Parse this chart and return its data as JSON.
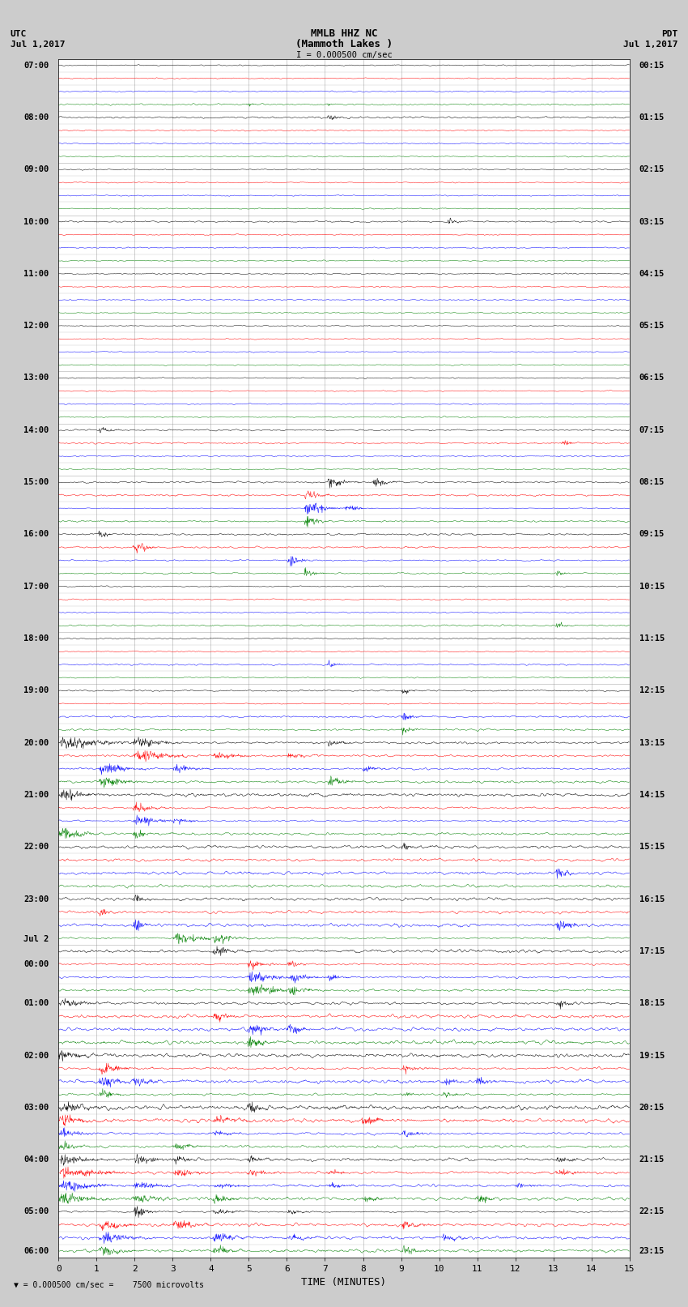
{
  "title_line1": "MMLB HHZ NC",
  "title_line2": "(Mammoth Lakes )",
  "title_line3": "I = 0.000500 cm/sec",
  "left_label_line1": "UTC",
  "left_label_line2": "Jul 1,2017",
  "right_label_line1": "PDT",
  "right_label_line2": "Jul 1,2017",
  "xlabel": "TIME (MINUTES)",
  "bottom_note": "= 0.000500 cm/sec =    7500 microvolts",
  "xlim": [
    0,
    15
  ],
  "xticks": [
    0,
    1,
    2,
    3,
    4,
    5,
    6,
    7,
    8,
    9,
    10,
    11,
    12,
    13,
    14,
    15
  ],
  "colors": [
    "black",
    "red",
    "blue",
    "green"
  ],
  "n_groups": 23,
  "bg_color": "#cccccc",
  "trace_bg": "#ffffff",
  "seed": 42,
  "utc_labels": [
    [
      0,
      "07:00"
    ],
    [
      4,
      "08:00"
    ],
    [
      8,
      "09:00"
    ],
    [
      12,
      "10:00"
    ],
    [
      16,
      "11:00"
    ],
    [
      20,
      "12:00"
    ],
    [
      24,
      "13:00"
    ],
    [
      28,
      "14:00"
    ],
    [
      32,
      "15:00"
    ],
    [
      36,
      "16:00"
    ],
    [
      40,
      "17:00"
    ],
    [
      44,
      "18:00"
    ],
    [
      48,
      "19:00"
    ],
    [
      52,
      "20:00"
    ],
    [
      56,
      "21:00"
    ],
    [
      60,
      "22:00"
    ],
    [
      64,
      "23:00"
    ],
    [
      68,
      "Jul 2"
    ],
    [
      69,
      "00:00"
    ],
    [
      72,
      "01:00"
    ],
    [
      76,
      "02:00"
    ],
    [
      80,
      "03:00"
    ],
    [
      84,
      "04:00"
    ],
    [
      88,
      "05:00"
    ],
    [
      91,
      "06:00"
    ]
  ],
  "pdt_labels": [
    [
      0,
      "00:15"
    ],
    [
      4,
      "01:15"
    ],
    [
      8,
      "02:15"
    ],
    [
      12,
      "03:15"
    ],
    [
      16,
      "04:15"
    ],
    [
      20,
      "05:15"
    ],
    [
      24,
      "06:15"
    ],
    [
      28,
      "07:15"
    ],
    [
      32,
      "08:15"
    ],
    [
      36,
      "09:15"
    ],
    [
      40,
      "10:15"
    ],
    [
      44,
      "11:15"
    ],
    [
      48,
      "12:15"
    ],
    [
      52,
      "13:15"
    ],
    [
      56,
      "14:15"
    ],
    [
      60,
      "15:15"
    ],
    [
      64,
      "16:15"
    ],
    [
      68,
      "17:15"
    ],
    [
      72,
      "18:15"
    ],
    [
      76,
      "19:15"
    ],
    [
      80,
      "20:15"
    ],
    [
      84,
      "21:15"
    ],
    [
      88,
      "22:15"
    ],
    [
      91,
      "23:15"
    ]
  ]
}
